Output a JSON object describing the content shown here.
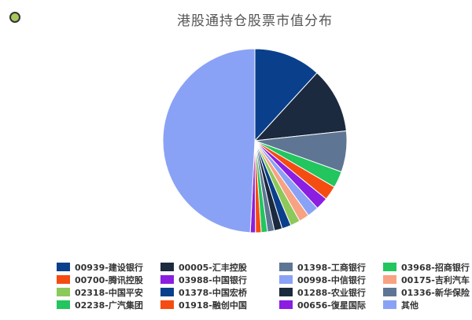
{
  "chart_data": {
    "type": "pie",
    "title": "港股通持仓股票市值分布",
    "legend_position": "bottom",
    "slices": [
      {
        "label": "00939-建设银行",
        "value": 11.8,
        "color": "#0a3f8c"
      },
      {
        "label": "00005-汇丰控股",
        "value": 11.5,
        "color": "#1c2a3f"
      },
      {
        "label": "01398-工商银行",
        "value": 7.2,
        "color": "#5e7693"
      },
      {
        "label": "03968-招商银行",
        "value": 2.9,
        "color": "#22c55e"
      },
      {
        "label": "00700-腾讯控股",
        "value": 2.5,
        "color": "#f54c12"
      },
      {
        "label": "03988-中国银行",
        "value": 2.2,
        "color": "#8b1ee0"
      },
      {
        "label": "00998-中信银行",
        "value": 2.0,
        "color": "#8aa2f5"
      },
      {
        "label": "00175-吉利汽车",
        "value": 1.8,
        "color": "#f7a283"
      },
      {
        "label": "02318-中国平安",
        "value": 1.7,
        "color": "#8dc95a"
      },
      {
        "label": "01378-中国宏桥",
        "value": 1.6,
        "color": "#0a3f8c"
      },
      {
        "label": "01288-农业银行",
        "value": 1.4,
        "color": "#1c2a3f"
      },
      {
        "label": "01336-新华保险",
        "value": 1.2,
        "color": "#5e7693"
      },
      {
        "label": "02238-广汽集团",
        "value": 1.1,
        "color": "#22c55e"
      },
      {
        "label": "01918-融创中国",
        "value": 1.0,
        "color": "#f54c12"
      },
      {
        "label": "00656-復星国际",
        "value": 0.9,
        "color": "#8b1ee0"
      },
      {
        "label": "其他",
        "value": 49.2,
        "color": "#8aa2f5"
      }
    ]
  }
}
